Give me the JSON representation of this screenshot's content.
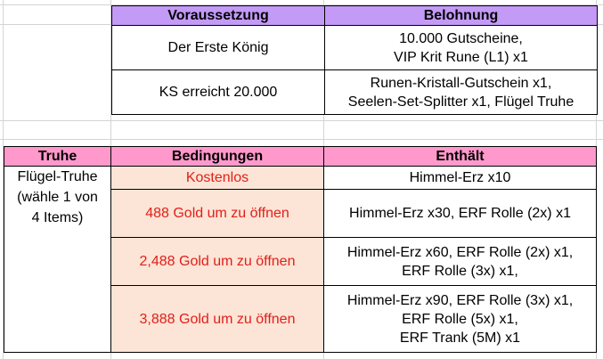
{
  "table1": {
    "headers": [
      "Voraussetzung",
      "Belohnung"
    ],
    "rows": [
      {
        "condition": "Der Erste König",
        "reward": [
          "10.000 Gutscheine,",
          "VIP Krit Rune (L1) x1"
        ]
      },
      {
        "condition": "KS erreicht 20.000",
        "reward": [
          "Runen-Kristall-Gutschein x1,",
          "Seelen-Set-Splitter x1, Flügel Truhe"
        ]
      }
    ]
  },
  "table2": {
    "headers": [
      "Truhe",
      "Bedingungen",
      "Enthält"
    ],
    "chest_lines": [
      "Flügel-Truhe",
      "(wähle 1 von",
      "4 Items)"
    ],
    "rows": [
      {
        "condition": "Kostenlos",
        "contents": [
          "Himmel-Erz x10"
        ]
      },
      {
        "condition": "488 Gold um zu öffnen",
        "contents": [
          "Himmel-Erz x30, ERF Rolle (2x) x1"
        ]
      },
      {
        "condition": "2,488 Gold um zu öffnen",
        "contents": [
          "Himmel-Erz x60, ERF Rolle (2x) x1,",
          "ERF Rolle (3x) x1,"
        ]
      },
      {
        "condition": "3,888 Gold um zu öffnen",
        "contents": [
          "Himmel-Erz x90, ERF Rolle (3x) x1,",
          "ERF Rolle (5x) x1,",
          "ERF Trank (5M) x1"
        ]
      }
    ]
  },
  "colors": {
    "header1": "#c39af6",
    "header2": "#ff99cc",
    "peach": "#fce4d6",
    "red_text": "#e0201a"
  }
}
